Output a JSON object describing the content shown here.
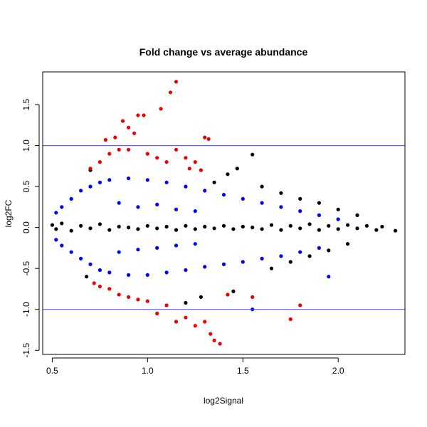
{
  "chart_data": {
    "type": "scatter",
    "title": "Fold change vs average abundance",
    "xlabel": "log2Signal",
    "ylabel": "log2FC",
    "xlim": [
      0.45,
      2.35
    ],
    "ylim": [
      -1.55,
      1.9
    ],
    "x_ticks": [
      {
        "value": 0.5,
        "label": "0.5"
      },
      {
        "value": 1.0,
        "label": "1.0"
      },
      {
        "value": 1.5,
        "label": "1.5"
      },
      {
        "value": 2.0,
        "label": "2.0"
      }
    ],
    "y_ticks": [
      {
        "value": -1.5,
        "label": "-1.5"
      },
      {
        "value": -1.0,
        "label": "-1.0"
      },
      {
        "value": -0.5,
        "label": "-0.5"
      },
      {
        "value": 0.0,
        "label": "0.0"
      },
      {
        "value": 0.5,
        "label": "0.5"
      },
      {
        "value": 1.0,
        "label": "1.0"
      },
      {
        "value": 1.5,
        "label": "1.5"
      }
    ],
    "reference_lines": [
      {
        "y": 1.0,
        "color": "#4040ff"
      },
      {
        "y": -1.0,
        "color": "#4040ff"
      }
    ],
    "grid": false,
    "legend": "none",
    "series": [
      {
        "color": "#000000",
        "points": [
          [
            0.5,
            0.03
          ],
          [
            0.52,
            -0.02
          ],
          [
            0.55,
            0.05
          ],
          [
            0.6,
            -0.04
          ],
          [
            0.65,
            0.02
          ],
          [
            0.7,
            -0.01
          ],
          [
            0.75,
            0.04
          ],
          [
            0.8,
            -0.03
          ],
          [
            0.85,
            0.01
          ],
          [
            0.9,
            0.0
          ],
          [
            0.95,
            -0.02
          ],
          [
            1.0,
            0.02
          ],
          [
            1.05,
            -0.01
          ],
          [
            1.1,
            0.01
          ],
          [
            1.15,
            -0.03
          ],
          [
            1.2,
            0.02
          ],
          [
            1.25,
            -0.02
          ],
          [
            1.3,
            0.01
          ],
          [
            1.35,
            -0.01
          ],
          [
            1.4,
            0.02
          ],
          [
            1.45,
            -0.02
          ],
          [
            1.5,
            0.01
          ],
          [
            1.55,
            0.0
          ],
          [
            1.6,
            -0.02
          ],
          [
            1.65,
            0.03
          ],
          [
            1.7,
            -0.03
          ],
          [
            1.75,
            0.02
          ],
          [
            1.8,
            -0.01
          ],
          [
            1.85,
            0.04
          ],
          [
            1.9,
            -0.03
          ],
          [
            1.95,
            0.02
          ],
          [
            2.0,
            -0.02
          ],
          [
            2.05,
            0.03
          ],
          [
            2.1,
            -0.01
          ],
          [
            2.15,
            0.02
          ],
          [
            2.2,
            -0.03
          ],
          [
            2.23,
            0.01
          ],
          [
            2.3,
            -0.04
          ],
          [
            1.55,
            0.89
          ],
          [
            1.47,
            0.72
          ],
          [
            1.42,
            0.65
          ],
          [
            1.35,
            0.55
          ],
          [
            1.6,
            0.5
          ],
          [
            1.7,
            0.42
          ],
          [
            1.8,
            0.35
          ],
          [
            1.9,
            0.3
          ],
          [
            2.0,
            0.22
          ],
          [
            2.1,
            0.15
          ],
          [
            1.65,
            -0.5
          ],
          [
            1.75,
            -0.42
          ],
          [
            1.85,
            -0.35
          ],
          [
            1.95,
            -0.28
          ],
          [
            2.05,
            -0.2
          ],
          [
            1.2,
            -0.92
          ],
          [
            1.28,
            -0.85
          ],
          [
            0.7,
            0.7
          ],
          [
            0.68,
            -0.6
          ],
          [
            1.45,
            -0.78
          ]
        ]
      },
      {
        "color": "#0000ff",
        "points": [
          [
            0.52,
            0.18
          ],
          [
            0.55,
            0.25
          ],
          [
            0.6,
            0.35
          ],
          [
            0.65,
            0.45
          ],
          [
            0.7,
            0.5
          ],
          [
            0.75,
            0.55
          ],
          [
            0.8,
            0.58
          ],
          [
            0.9,
            0.6
          ],
          [
            1.0,
            0.58
          ],
          [
            1.1,
            0.55
          ],
          [
            1.2,
            0.5
          ],
          [
            1.3,
            0.45
          ],
          [
            1.4,
            0.4
          ],
          [
            1.5,
            0.35
          ],
          [
            1.6,
            0.3
          ],
          [
            1.7,
            0.25
          ],
          [
            1.8,
            0.2
          ],
          [
            1.9,
            0.15
          ],
          [
            2.0,
            0.1
          ],
          [
            0.52,
            -0.15
          ],
          [
            0.55,
            -0.22
          ],
          [
            0.6,
            -0.3
          ],
          [
            0.65,
            -0.38
          ],
          [
            0.7,
            -0.45
          ],
          [
            0.75,
            -0.52
          ],
          [
            0.8,
            -0.55
          ],
          [
            0.9,
            -0.58
          ],
          [
            1.0,
            -0.58
          ],
          [
            1.1,
            -0.55
          ],
          [
            1.2,
            -0.52
          ],
          [
            1.3,
            -0.48
          ],
          [
            1.4,
            -0.45
          ],
          [
            1.5,
            -0.42
          ],
          [
            1.6,
            -0.38
          ],
          [
            1.7,
            -0.35
          ],
          [
            1.8,
            -0.3
          ],
          [
            1.9,
            -0.25
          ],
          [
            1.95,
            -0.6
          ],
          [
            1.55,
            -1.0
          ],
          [
            0.85,
            0.3
          ],
          [
            0.95,
            0.25
          ],
          [
            1.05,
            0.28
          ],
          [
            1.15,
            0.22
          ],
          [
            1.25,
            0.2
          ],
          [
            0.85,
            -0.3
          ],
          [
            0.95,
            -0.27
          ],
          [
            1.05,
            -0.25
          ],
          [
            1.15,
            -0.22
          ],
          [
            1.25,
            -0.2
          ]
        ]
      },
      {
        "color": "#ee0000",
        "points": [
          [
            1.15,
            1.78
          ],
          [
            1.12,
            1.65
          ],
          [
            1.07,
            1.45
          ],
          [
            0.98,
            1.37
          ],
          [
            0.95,
            1.37
          ],
          [
            0.87,
            1.3
          ],
          [
            0.9,
            1.22
          ],
          [
            0.93,
            1.15
          ],
          [
            0.83,
            1.1
          ],
          [
            0.78,
            1.07
          ],
          [
            0.8,
            0.9
          ],
          [
            0.75,
            0.8
          ],
          [
            0.7,
            0.72
          ],
          [
            0.85,
            0.95
          ],
          [
            0.9,
            0.95
          ],
          [
            1.0,
            0.9
          ],
          [
            1.05,
            0.85
          ],
          [
            1.1,
            0.8
          ],
          [
            1.15,
            0.95
          ],
          [
            1.2,
            0.85
          ],
          [
            1.25,
            0.8
          ],
          [
            1.3,
            1.1
          ],
          [
            1.32,
            1.08
          ],
          [
            1.22,
            0.72
          ],
          [
            1.28,
            0.7
          ],
          [
            0.72,
            -0.68
          ],
          [
            0.75,
            -0.72
          ],
          [
            0.8,
            -0.75
          ],
          [
            0.85,
            -0.82
          ],
          [
            0.9,
            -0.85
          ],
          [
            0.95,
            -0.88
          ],
          [
            1.0,
            -0.9
          ],
          [
            1.05,
            -1.05
          ],
          [
            1.1,
            -0.95
          ],
          [
            1.15,
            -1.15
          ],
          [
            1.2,
            -1.1
          ],
          [
            1.25,
            -1.2
          ],
          [
            1.3,
            -1.15
          ],
          [
            1.33,
            -1.3
          ],
          [
            1.35,
            -1.38
          ],
          [
            1.38,
            -1.42
          ],
          [
            1.42,
            -0.82
          ],
          [
            1.55,
            -0.85
          ],
          [
            1.75,
            -1.12
          ],
          [
            1.8,
            -0.95
          ]
        ]
      }
    ]
  }
}
